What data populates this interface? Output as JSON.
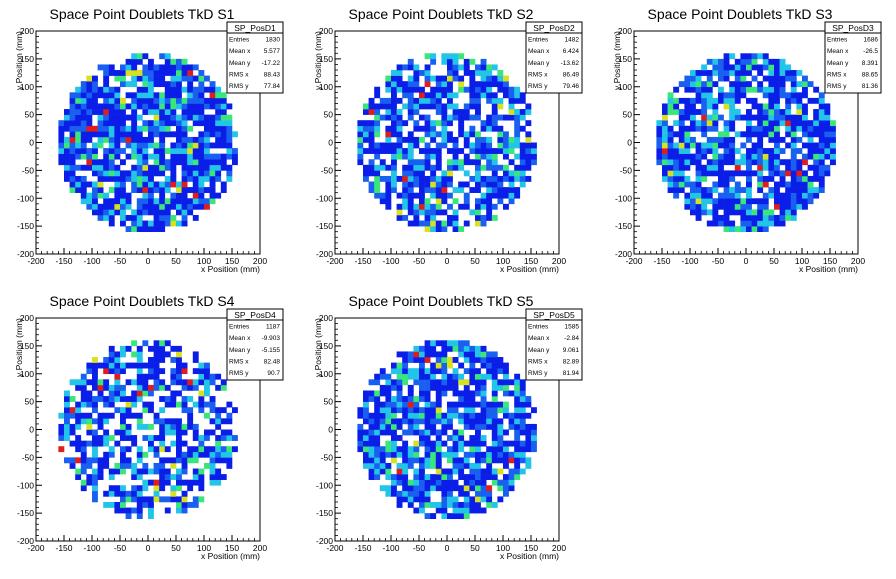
{
  "chart_data": [
    {
      "type": "heatmap",
      "title": "Space Point Doublets TkD S1",
      "xlabel": "x Position (mm)",
      "ylabel": "y Position (mm)",
      "xlim": [
        -200,
        200
      ],
      "ylim": [
        -200,
        200
      ],
      "stats": {
        "name": "SP_PosD1",
        "rows": [
          [
            "Entries",
            "1830"
          ],
          [
            "Mean x",
            "5.577"
          ],
          [
            "Mean y",
            "-17.22"
          ],
          [
            "RMS x",
            "88.43"
          ],
          [
            "RMS y",
            "77.84"
          ]
        ]
      },
      "entries": 1830,
      "fill_fraction": 0.84,
      "seed": 11
    },
    {
      "type": "heatmap",
      "title": "Space Point Doublets TkD S2",
      "xlabel": "x Position (mm)",
      "ylabel": "y Position (mm)",
      "xlim": [
        -200,
        200
      ],
      "ylim": [
        -200,
        200
      ],
      "stats": {
        "name": "SP_PosD2",
        "rows": [
          [
            "Entries",
            "1482"
          ],
          [
            "Mean x",
            "6.424"
          ],
          [
            "Mean y",
            "-13.62"
          ],
          [
            "RMS x",
            "86.49"
          ],
          [
            "RMS y",
            "79.46"
          ]
        ]
      },
      "entries": 1482,
      "fill_fraction": 0.72,
      "seed": 23
    },
    {
      "type": "heatmap",
      "title": "Space Point Doublets TkD S3",
      "xlabel": "x Position (mm)",
      "ylabel": "y Position (mm)",
      "xlim": [
        -200,
        200
      ],
      "ylim": [
        -200,
        200
      ],
      "stats": {
        "name": "SP_PosD3",
        "rows": [
          [
            "Entries",
            "1686"
          ],
          [
            "Mean x",
            "-26.5"
          ],
          [
            "Mean y",
            "8.391"
          ],
          [
            "RMS x",
            "88.65"
          ],
          [
            "RMS y",
            "81.36"
          ]
        ]
      },
      "entries": 1686,
      "fill_fraction": 0.8,
      "seed": 37
    },
    {
      "type": "heatmap",
      "title": "Space Point Doublets TkD S4",
      "xlabel": "x Position (mm)",
      "ylabel": "y Position (mm)",
      "xlim": [
        -200,
        200
      ],
      "ylim": [
        -200,
        200
      ],
      "stats": {
        "name": "SP_PosD4",
        "rows": [
          [
            "Entries",
            "1187"
          ],
          [
            "Mean x",
            "-9.903"
          ],
          [
            "Mean y",
            "-5.155"
          ],
          [
            "RMS x",
            "82.48"
          ],
          [
            "RMS y",
            "90.7"
          ]
        ]
      },
      "entries": 1187,
      "fill_fraction": 0.62,
      "seed": 41
    },
    {
      "type": "heatmap",
      "title": "Space Point Doublets TkD S5",
      "xlabel": "x Position (mm)",
      "ylabel": "y Position (mm)",
      "xlim": [
        -200,
        200
      ],
      "ylim": [
        -200,
        200
      ],
      "stats": {
        "name": "SP_PosD5",
        "rows": [
          [
            "Entries",
            "1585"
          ],
          [
            "Mean x",
            "-2.84"
          ],
          [
            "Mean y",
            "9.061"
          ],
          [
            "RMS x",
            "82.89"
          ],
          [
            "RMS y",
            "81.94"
          ]
        ]
      },
      "entries": 1585,
      "fill_fraction": 0.78,
      "seed": 53
    }
  ],
  "axis_ticks": [
    "-200",
    "-150",
    "-100",
    "-50",
    "0",
    "50",
    "100",
    "150",
    "200"
  ],
  "circle_radius_mm": 160,
  "bin_size_mm": 10,
  "palette": [
    "#0a1ee8",
    "#1a60f0",
    "#22c4e8",
    "#3ae67a",
    "#d8e020",
    "#e01c1c"
  ]
}
